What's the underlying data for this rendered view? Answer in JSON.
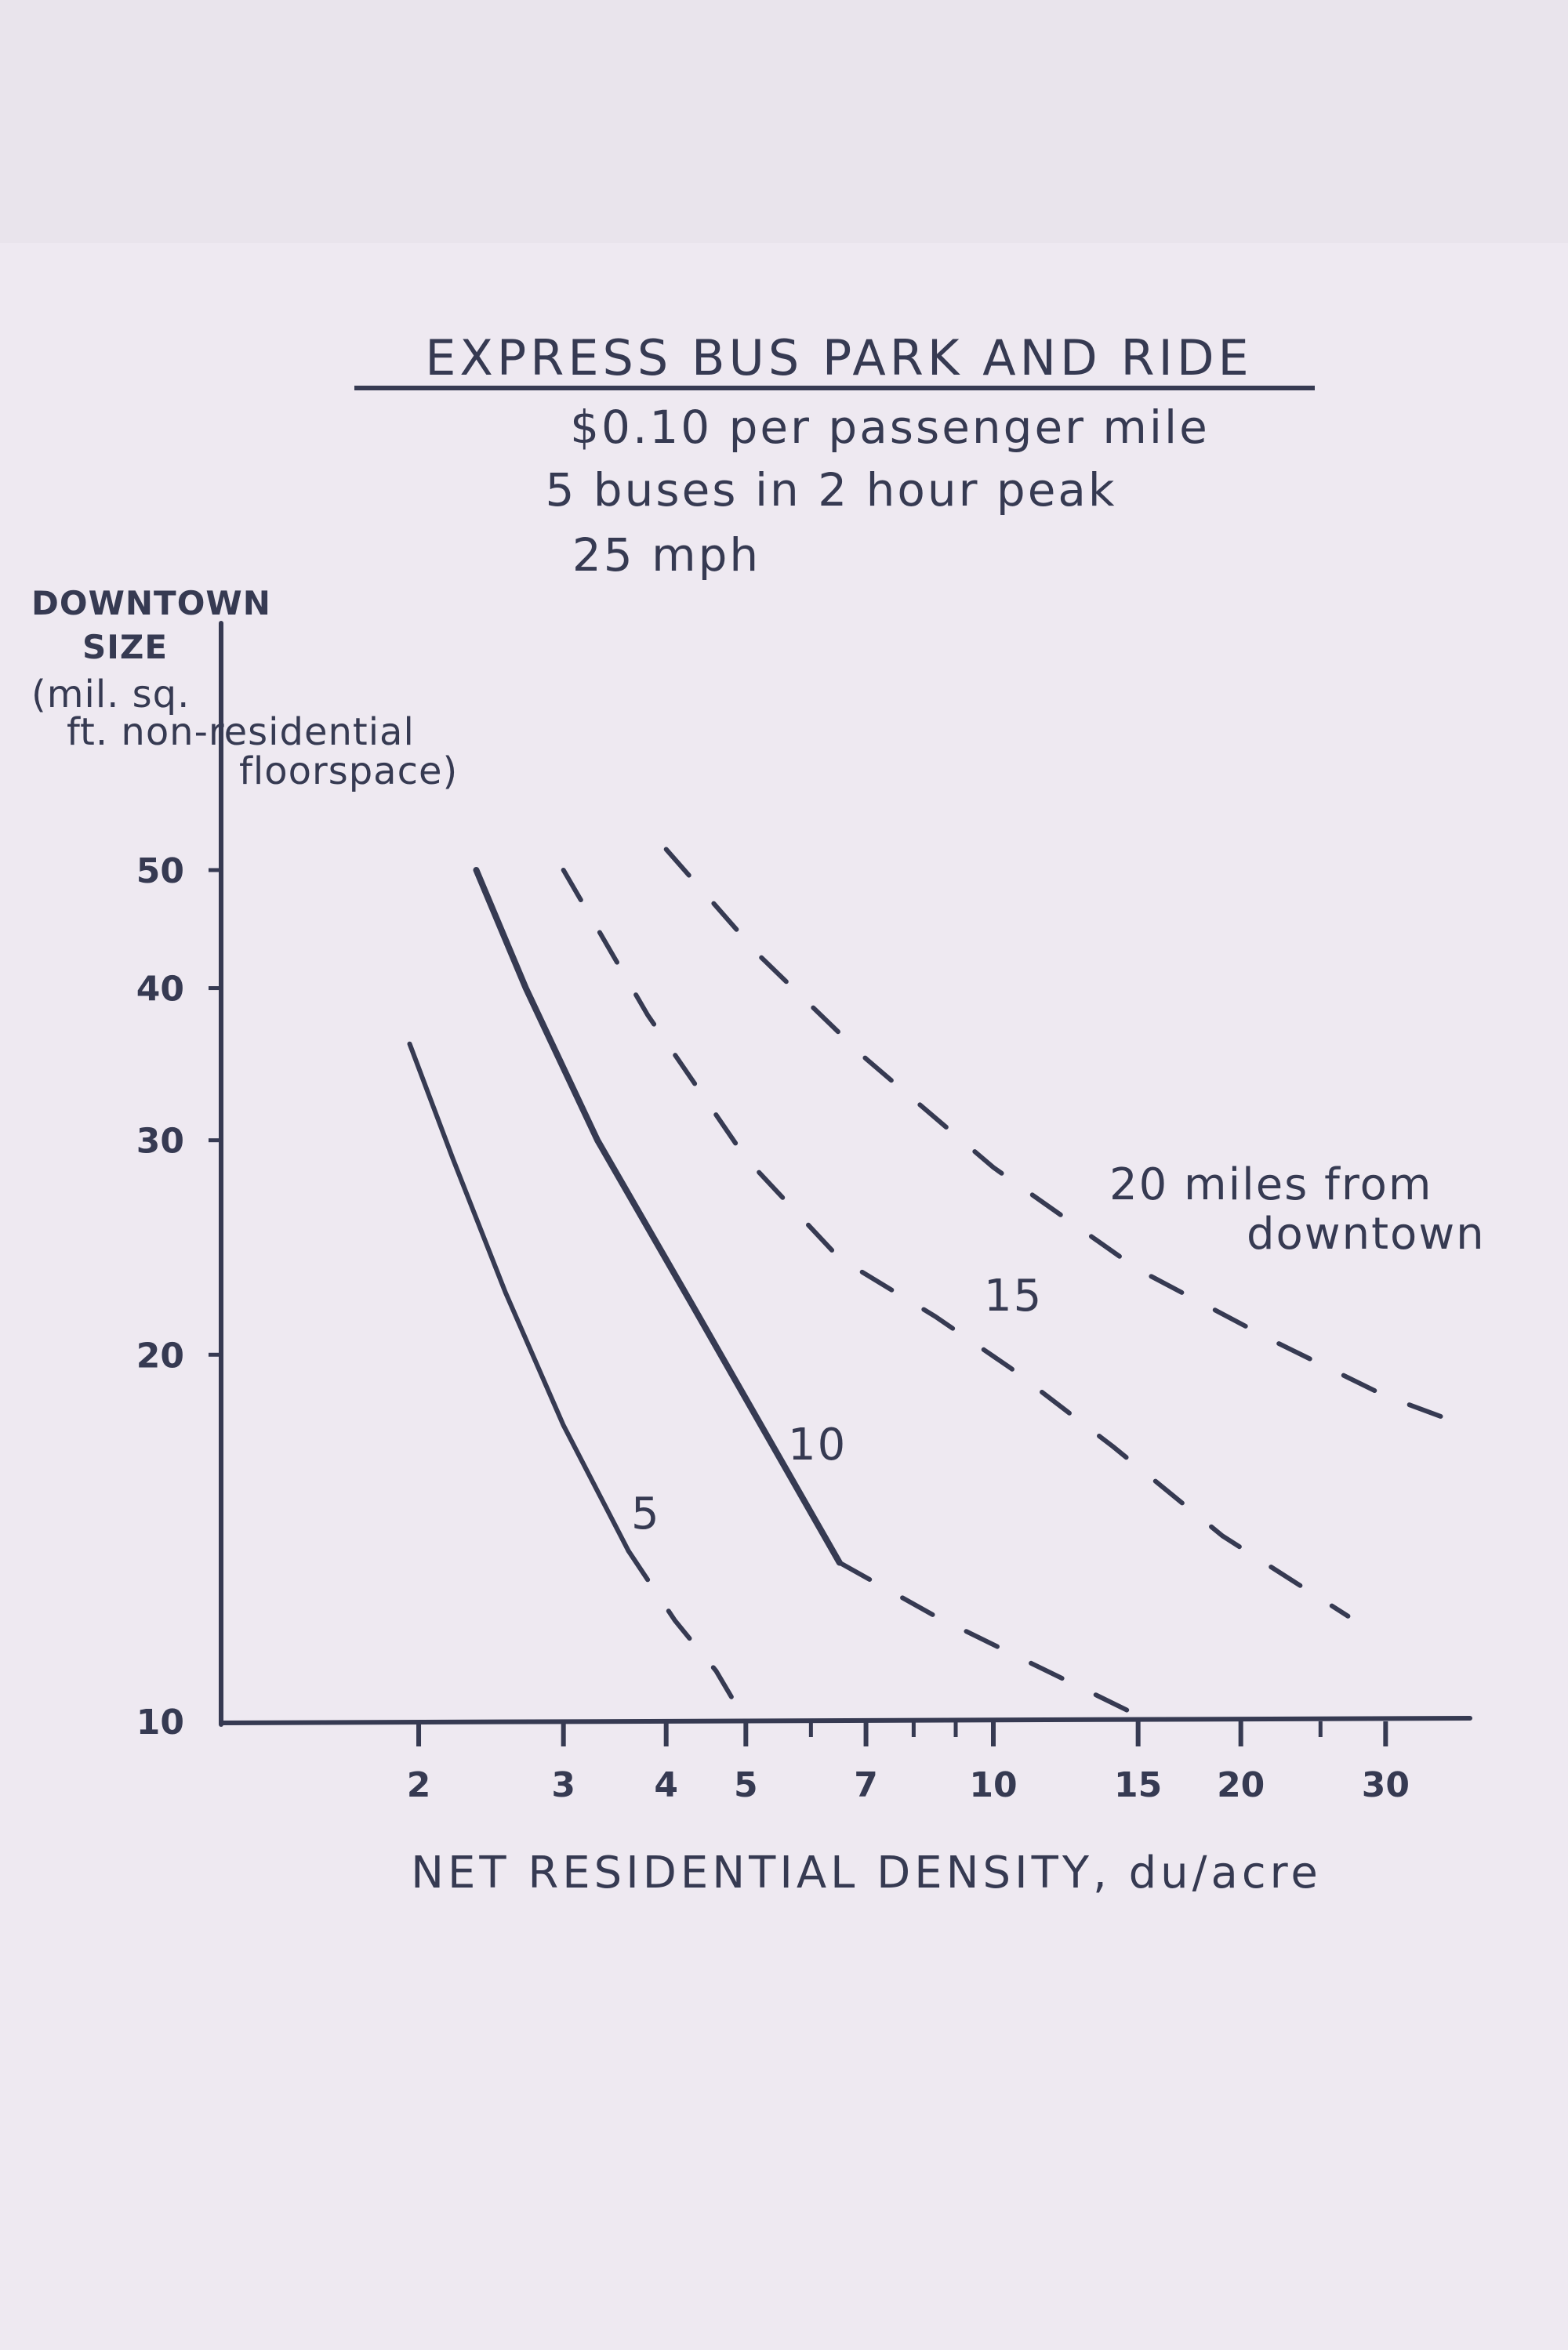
{
  "chart_data": {
    "type": "line",
    "title": "EXPRESS BUS PARK AND RIDE",
    "subtitle_lines": [
      "$0.10 per passenger mile",
      "5 buses in 2 hour peak",
      "25 mph"
    ],
    "ylabel_lines": [
      "DOWNTOWN",
      "SIZE",
      "(mil. sq.",
      "ft. non-residential",
      "floorspace)"
    ],
    "xlabel": "NET RESIDENTIAL DENSITY, du/acre",
    "x_scale": "log",
    "y_scale": "log",
    "xlim": [
      1.15,
      38
    ],
    "ylim": [
      10,
      50
    ],
    "x_ticks": [
      2,
      3,
      4,
      5,
      6,
      7,
      8,
      9,
      10,
      15,
      20,
      25,
      30
    ],
    "x_tick_labels": [
      "2",
      "3",
      "4",
      "5",
      "",
      "7",
      "",
      "",
      "10",
      "15",
      "20",
      "",
      "30"
    ],
    "y_ticks": [
      10,
      20,
      30,
      40,
      50
    ],
    "y_tick_labels": [
      "10",
      "20",
      "30",
      "40",
      "50"
    ],
    "grid": false,
    "series": [
      {
        "name": "5",
        "solid_points": [
          [
            1.95,
            36
          ],
          [
            2.2,
            29
          ],
          [
            2.55,
            22.5
          ],
          [
            3.0,
            17.5
          ],
          [
            3.6,
            13.8
          ]
        ],
        "dashed_points": [
          [
            3.6,
            13.8
          ],
          [
            4.1,
            12.1
          ],
          [
            4.6,
            11.0
          ],
          [
            5.0,
            10.0
          ]
        ]
      },
      {
        "name": "10",
        "solid_points": [
          [
            2.35,
            50
          ],
          [
            2.7,
            40
          ],
          [
            3.3,
            30
          ],
          [
            4.3,
            22
          ],
          [
            6.5,
            13.5
          ]
        ],
        "dashed_points": [
          [
            6.5,
            13.5
          ],
          [
            8.5,
            12.2
          ],
          [
            11,
            11.2
          ],
          [
            13,
            10.6
          ],
          [
            15.5,
            10.0
          ]
        ]
      },
      {
        "name": "15",
        "solid_points": [],
        "dashed_points": [
          [
            3.0,
            50
          ],
          [
            3.8,
            38
          ],
          [
            5.0,
            29
          ],
          [
            6.5,
            24
          ],
          [
            8.5,
            21.5
          ],
          [
            10.5,
            19.5
          ],
          [
            14,
            16.8
          ],
          [
            19,
            14.2
          ],
          [
            27,
            12.2
          ]
        ]
      },
      {
        "name": "20 miles from downtown",
        "solid_points": [],
        "dashed_points": [
          [
            4.0,
            52
          ],
          [
            5.2,
            42.5
          ],
          [
            7.0,
            35
          ],
          [
            10,
            28.5
          ],
          [
            15,
            23.5
          ],
          [
            22,
            20.5
          ],
          [
            30,
            18.5
          ],
          [
            35,
            17.8
          ]
        ]
      }
    ]
  },
  "labels": {
    "curve5": "5",
    "curve10": "10",
    "curve15": "15",
    "curve20_line1": "20 miles from",
    "curve20_line2": "downtown"
  },
  "colors": {
    "ink": "#363a52",
    "paper": "#e9e4ec"
  }
}
